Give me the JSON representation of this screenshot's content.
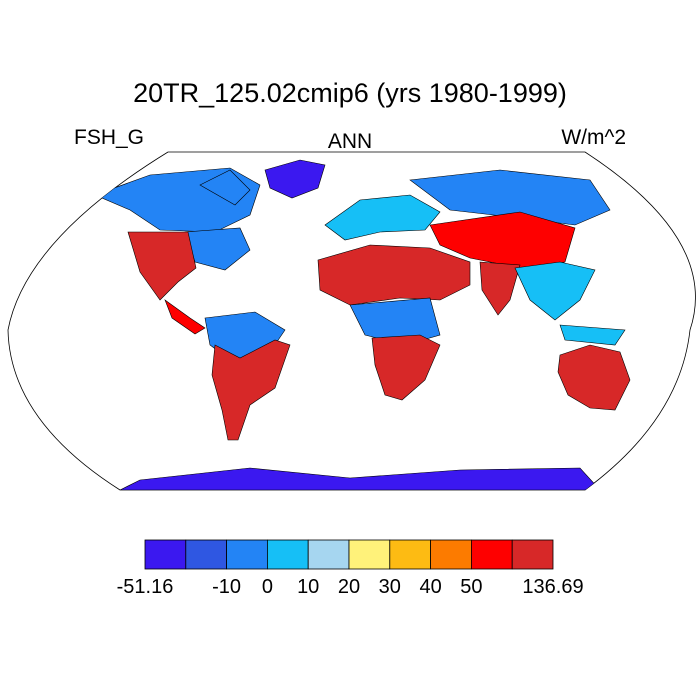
{
  "title": "20TR_125.02cmip6 (yrs 1980-1999)",
  "variable": "FSH_G",
  "season": "ANN",
  "units": "W/m^2",
  "projection": "Robinson",
  "colorbar": {
    "colors": [
      "#3b18f0",
      "#2f57e2",
      "#2384f5",
      "#16bff6",
      "#a6d6f0",
      "#fff27a",
      "#fdbb13",
      "#fc7b00",
      "#fe0000",
      "#d72828"
    ],
    "tick_labels": [
      "-51.16",
      "-10",
      "0",
      "10",
      "20",
      "30",
      "40",
      "50",
      "136.69"
    ],
    "tick_boundary_index": [
      0,
      2,
      3,
      4,
      5,
      6,
      7,
      8,
      10
    ]
  },
  "map_regions": [
    {
      "name": "Greenland",
      "level": 0
    },
    {
      "name": "Antarctica",
      "level": 0
    },
    {
      "name": "Canada and Alaska",
      "level": 2
    },
    {
      "name": "Eastern United States",
      "level": 2
    },
    {
      "name": "Southwestern United States and Mexico",
      "level": 9
    },
    {
      "name": "Central America",
      "level": 8
    },
    {
      "name": "Amazon",
      "level": 2
    },
    {
      "name": "Brazil Highlands and Southern South America",
      "level": 9
    },
    {
      "name": "Sahara and Arabia",
      "level": 9
    },
    {
      "name": "Central Africa",
      "level": 2
    },
    {
      "name": "Southern Africa",
      "level": 9
    },
    {
      "name": "Europe",
      "level": 3
    },
    {
      "name": "Siberia",
      "level": 2
    },
    {
      "name": "Central Asia",
      "level": 8
    },
    {
      "name": "India",
      "level": 9
    },
    {
      "name": "Southeast Asia",
      "level": 3
    },
    {
      "name": "Australia",
      "level": 9
    }
  ]
}
